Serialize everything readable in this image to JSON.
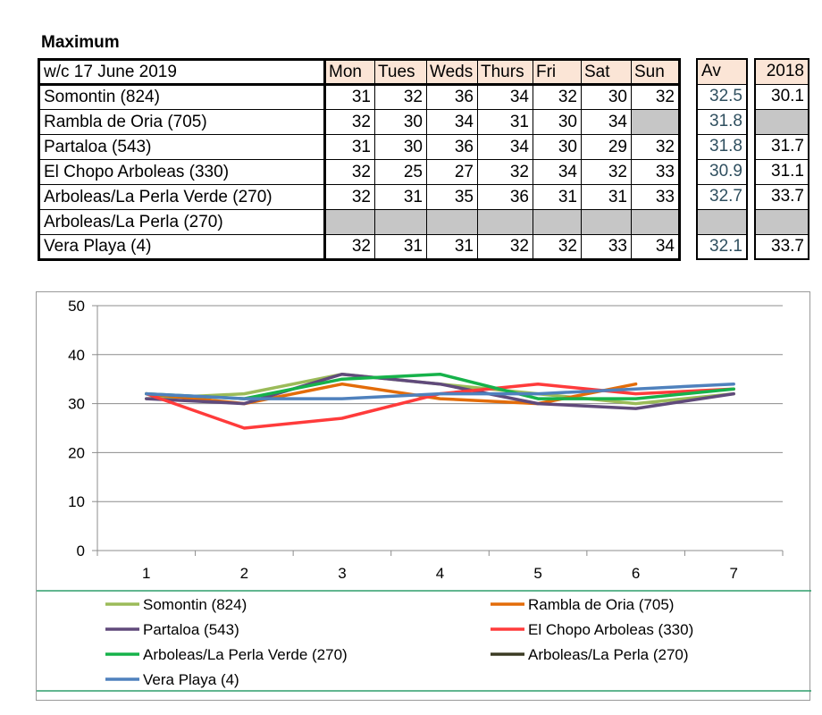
{
  "table": {
    "title": "Maximum",
    "week_label": "w/c 17 June 2019",
    "days": [
      "Mon",
      "Tues",
      "Weds",
      "Thurs",
      "Fri",
      "Sat",
      "Sun"
    ],
    "av_label": "Av",
    "year_label": "2018",
    "rows": [
      {
        "station": "Somontin (824)",
        "values": [
          "31",
          "32",
          "36",
          "34",
          "32",
          "30",
          "32"
        ],
        "av": "32.5",
        "y2018": "30.1"
      },
      {
        "station": "Rambla de Oria (705)",
        "values": [
          "32",
          "30",
          "34",
          "31",
          "30",
          "34",
          ""
        ],
        "av": "31.8",
        "y2018": ""
      },
      {
        "station": "Partaloa (543)",
        "values": [
          "31",
          "30",
          "36",
          "34",
          "30",
          "29",
          "32"
        ],
        "av": "31.8",
        "y2018": "31.7"
      },
      {
        "station": "El Chopo  Arboleas (330)",
        "values": [
          "32",
          "25",
          "27",
          "32",
          "34",
          "32",
          "33"
        ],
        "av": "30.9",
        "y2018": "31.1"
      },
      {
        "station": "Arboleas/La Perla Verde (270)",
        "values": [
          "32",
          "31",
          "35",
          "36",
          "31",
          "31",
          "33"
        ],
        "av": "32.7",
        "y2018": "33.7"
      },
      {
        "station": "Arboleas/La Perla (270)",
        "values": [
          "",
          "",
          "",
          "",
          "",
          "",
          ""
        ],
        "av": "",
        "y2018": ""
      },
      {
        "station": "Vera Playa (4)",
        "values": [
          "32",
          "31",
          "31",
          "32",
          "32",
          "33",
          "34"
        ],
        "av": "32.1",
        "y2018": "33.7"
      }
    ]
  },
  "chart_data": {
    "type": "line",
    "title": "",
    "xlabel": "",
    "ylabel": "",
    "x": [
      1,
      2,
      3,
      4,
      5,
      6,
      7
    ],
    "ylim": [
      0,
      50
    ],
    "yticks": [
      0,
      10,
      20,
      30,
      40,
      50
    ],
    "grid": true,
    "legend_position": "bottom",
    "series": [
      {
        "name": "Somontin (824)",
        "color": "#9bbb59",
        "values": [
          31,
          32,
          36,
          34,
          32,
          30,
          32
        ]
      },
      {
        "name": "Rambla de Oria (705)",
        "color": "#e36c09",
        "values": [
          32,
          30,
          34,
          31,
          30,
          34,
          null
        ]
      },
      {
        "name": "Partaloa (543)",
        "color": "#604a7b",
        "values": [
          31,
          30,
          36,
          34,
          30,
          29,
          32
        ]
      },
      {
        "name": "El Chopo  Arboleas (330)",
        "color": "#ff3b3b",
        "values": [
          32,
          25,
          27,
          32,
          34,
          32,
          33
        ]
      },
      {
        "name": "Arboleas/La Perla Verde (270)",
        "color": "#16b24a",
        "values": [
          32,
          31,
          35,
          36,
          31,
          31,
          33
        ]
      },
      {
        "name": "Arboleas/La Perla (270)",
        "color": "#3b3b24",
        "values": [
          null,
          null,
          null,
          null,
          null,
          null,
          null
        ]
      },
      {
        "name": "Vera Playa (4)",
        "color": "#4f81bd",
        "values": [
          32,
          31,
          31,
          32,
          32,
          33,
          34
        ]
      }
    ]
  }
}
